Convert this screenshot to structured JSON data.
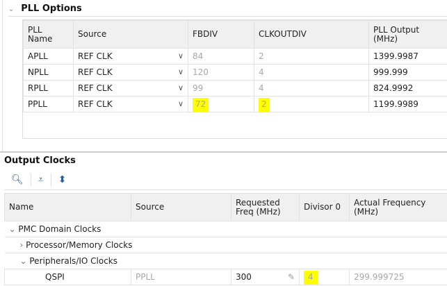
{
  "pll": {
    "title": "PLL Options",
    "headers": [
      "PLL Name",
      "Source",
      "FBDIV",
      "CLKOUTDIV",
      "PLL Output (MHz)"
    ],
    "rows": [
      {
        "name": "APLL",
        "source": "REF CLK",
        "fbdiv": "84",
        "clkoutdiv": "2",
        "output": "1399.9987"
      },
      {
        "name": "NPLL",
        "source": "REF CLK",
        "fbdiv": "120",
        "clkoutdiv": "4",
        "output": "999.999"
      },
      {
        "name": "RPLL",
        "source": "REF CLK",
        "fbdiv": "99",
        "clkoutdiv": "4",
        "output": "824.9992"
      },
      {
        "name": "PPLL",
        "source": "REF CLK",
        "fbdiv": "72",
        "clkoutdiv": "2",
        "output": "1199.9989"
      }
    ]
  },
  "out": {
    "title": "Output Clocks",
    "headers": [
      "Name",
      "Source",
      "Requested Freq (MHz)",
      "Divisor 0",
      "Actual Frequency (MHz)"
    ],
    "group": "PMC Domain Clocks",
    "sub1": "Processor/Memory Clocks",
    "sub2": "Peripherals/IO Clocks",
    "row": {
      "name": "QSPI",
      "source": "PPLL",
      "req": "300",
      "div": "4",
      "actual": "299.999725"
    }
  },
  "highlight_color": "#ffff00"
}
